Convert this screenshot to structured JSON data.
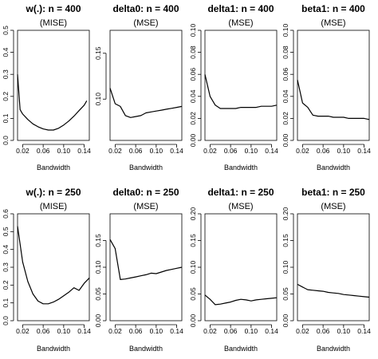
{
  "chart_data": [
    {
      "type": "line",
      "title": "w(.): n = 400",
      "subtitle": "(MISE)",
      "xlabel": "Bandwidth",
      "ylabel": "",
      "xlim": [
        0.01,
        0.15
      ],
      "ylim": [
        0,
        0.5
      ],
      "xticks": [
        0.02,
        0.06,
        0.1,
        0.14
      ],
      "xtick_labels": [
        "0.02",
        "0.06",
        "0.10",
        "0.14"
      ],
      "yticks": [
        0,
        0.1,
        0.2,
        0.3,
        0.4,
        0.5
      ],
      "ytick_labels": [
        "0.0",
        "0.1",
        "0.2",
        "0.3",
        "0.4",
        "0.5"
      ],
      "series": [
        {
          "x": [
            0.01,
            0.015,
            0.02,
            0.03,
            0.04,
            0.05,
            0.06,
            0.07,
            0.08,
            0.09,
            0.1,
            0.11,
            0.12,
            0.13,
            0.14,
            0.145
          ],
          "y": [
            0.3,
            0.14,
            0.12,
            0.095,
            0.075,
            0.062,
            0.052,
            0.047,
            0.047,
            0.055,
            0.07,
            0.088,
            0.11,
            0.135,
            0.16,
            0.18
          ]
        }
      ]
    },
    {
      "type": "line",
      "title": "delta0: n = 400",
      "subtitle": "(MSE)",
      "xlabel": "Bandwidth",
      "ylabel": "",
      "xlim": [
        0.01,
        0.15
      ],
      "ylim": [
        0.055,
        0.175
      ],
      "xticks": [
        0.02,
        0.06,
        0.1,
        0.14
      ],
      "xtick_labels": [
        "0.02",
        "0.06",
        "0.10",
        "0.14"
      ],
      "yticks": [
        0.1,
        0.15
      ],
      "ytick_labels": [
        "0.10",
        "0.15"
      ],
      "series": [
        {
          "x": [
            0.01,
            0.02,
            0.03,
            0.04,
            0.05,
            0.06,
            0.07,
            0.08,
            0.09,
            0.1,
            0.11,
            0.12,
            0.13,
            0.14,
            0.15
          ],
          "y": [
            0.112,
            0.095,
            0.092,
            0.082,
            0.08,
            0.081,
            0.082,
            0.085,
            0.086,
            0.087,
            0.088,
            0.089,
            0.09,
            0.091,
            0.092
          ]
        }
      ]
    },
    {
      "type": "line",
      "title": "delta1: n = 400",
      "subtitle": "(MSE)",
      "xlabel": "Bandwidth",
      "ylabel": "",
      "xlim": [
        0.01,
        0.15
      ],
      "ylim": [
        0,
        0.1
      ],
      "xticks": [
        0.02,
        0.06,
        0.1,
        0.14
      ],
      "xtick_labels": [
        "0.02",
        "0.06",
        "0.10",
        "0.14"
      ],
      "yticks": [
        0,
        0.02,
        0.04,
        0.06,
        0.08,
        0.1
      ],
      "ytick_labels": [
        "0.00",
        "0.02",
        "0.04",
        "0.06",
        "0.08",
        "0.10"
      ],
      "series": [
        {
          "x": [
            0.01,
            0.02,
            0.03,
            0.04,
            0.05,
            0.06,
            0.07,
            0.08,
            0.09,
            0.1,
            0.11,
            0.12,
            0.13,
            0.14,
            0.15
          ],
          "y": [
            0.06,
            0.04,
            0.032,
            0.029,
            0.029,
            0.029,
            0.029,
            0.03,
            0.03,
            0.03,
            0.03,
            0.031,
            0.031,
            0.031,
            0.032
          ]
        }
      ]
    },
    {
      "type": "line",
      "title": "beta1: n = 400",
      "subtitle": "(MSE)",
      "xlabel": "Bandwidth",
      "ylabel": "",
      "xlim": [
        0.01,
        0.15
      ],
      "ylim": [
        0,
        0.1
      ],
      "xticks": [
        0.02,
        0.06,
        0.1,
        0.14
      ],
      "xtick_labels": [
        "0.02",
        "0.06",
        "0.10",
        "0.14"
      ],
      "yticks": [
        0,
        0.02,
        0.04,
        0.06,
        0.08,
        0.1
      ],
      "ytick_labels": [
        "0.00",
        "0.02",
        "0.04",
        "0.06",
        "0.08",
        "0.10"
      ],
      "series": [
        {
          "x": [
            0.01,
            0.02,
            0.03,
            0.04,
            0.05,
            0.06,
            0.07,
            0.08,
            0.09,
            0.1,
            0.11,
            0.12,
            0.13,
            0.14,
            0.15
          ],
          "y": [
            0.055,
            0.034,
            0.03,
            0.023,
            0.022,
            0.022,
            0.022,
            0.021,
            0.021,
            0.021,
            0.02,
            0.02,
            0.02,
            0.02,
            0.019
          ]
        }
      ]
    },
    {
      "type": "line",
      "title": "w(.): n = 250",
      "subtitle": "(MISE)",
      "xlabel": "Bandwidth",
      "ylabel": "",
      "xlim": [
        0.01,
        0.15
      ],
      "ylim": [
        0,
        0.6
      ],
      "xticks": [
        0.02,
        0.06,
        0.1,
        0.14
      ],
      "xtick_labels": [
        "0.02",
        "0.06",
        "0.10",
        "0.14"
      ],
      "yticks": [
        0,
        0.1,
        0.2,
        0.3,
        0.4,
        0.5,
        0.6
      ],
      "ytick_labels": [
        "0.0",
        "0.1",
        "0.2",
        "0.3",
        "0.4",
        "0.5",
        "0.6"
      ],
      "series": [
        {
          "x": [
            0.01,
            0.02,
            0.03,
            0.04,
            0.05,
            0.06,
            0.07,
            0.08,
            0.09,
            0.1,
            0.11,
            0.12,
            0.13,
            0.14,
            0.15
          ],
          "y": [
            0.53,
            0.33,
            0.22,
            0.15,
            0.11,
            0.095,
            0.095,
            0.105,
            0.12,
            0.14,
            0.16,
            0.185,
            0.17,
            0.21,
            0.24
          ]
        }
      ]
    },
    {
      "type": "line",
      "title": "delta0: n = 250",
      "subtitle": "(MSE)",
      "xlabel": "Bandwidth",
      "ylabel": "",
      "xlim": [
        0.01,
        0.15
      ],
      "ylim": [
        0,
        0.2
      ],
      "xticks": [
        0.02,
        0.06,
        0.1,
        0.14
      ],
      "xtick_labels": [
        "0.02",
        "0.06",
        "0.10",
        "0.14"
      ],
      "yticks": [
        0,
        0.05,
        0.1,
        0.15
      ],
      "ytick_labels": [
        "0.00",
        "0.05",
        "0.10",
        "0.15"
      ],
      "series": [
        {
          "x": [
            0.01,
            0.02,
            0.03,
            0.04,
            0.05,
            0.06,
            0.07,
            0.08,
            0.09,
            0.1,
            0.11,
            0.12,
            0.13,
            0.14,
            0.15
          ],
          "y": [
            0.152,
            0.135,
            0.077,
            0.078,
            0.08,
            0.082,
            0.084,
            0.086,
            0.089,
            0.088,
            0.091,
            0.094,
            0.096,
            0.098,
            0.1
          ]
        }
      ]
    },
    {
      "type": "line",
      "title": "delta1: n = 250",
      "subtitle": "(MSE)",
      "xlabel": "Bandwidth",
      "ylabel": "",
      "xlim": [
        0.01,
        0.15
      ],
      "ylim": [
        0,
        0.2
      ],
      "xticks": [
        0.02,
        0.06,
        0.1,
        0.14
      ],
      "xtick_labels": [
        "0.02",
        "0.06",
        "0.10",
        "0.14"
      ],
      "yticks": [
        0,
        0.05,
        0.1,
        0.15,
        0.2
      ],
      "ytick_labels": [
        "0.00",
        "0.05",
        "0.10",
        "0.15",
        "0.20"
      ],
      "series": [
        {
          "x": [
            0.01,
            0.02,
            0.03,
            0.04,
            0.05,
            0.06,
            0.07,
            0.08,
            0.09,
            0.1,
            0.11,
            0.12,
            0.13,
            0.14,
            0.15
          ],
          "y": [
            0.048,
            0.04,
            0.03,
            0.031,
            0.033,
            0.035,
            0.038,
            0.04,
            0.039,
            0.037,
            0.039,
            0.04,
            0.041,
            0.042,
            0.043
          ]
        }
      ]
    },
    {
      "type": "line",
      "title": "beta1: n = 250",
      "subtitle": "(MSE)",
      "xlabel": "Bandwidth",
      "ylabel": "",
      "xlim": [
        0.01,
        0.15
      ],
      "ylim": [
        0,
        0.2
      ],
      "xticks": [
        0.02,
        0.06,
        0.1,
        0.14
      ],
      "xtick_labels": [
        "0.02",
        "0.06",
        "0.10",
        "0.14"
      ],
      "yticks": [
        0,
        0.05,
        0.1,
        0.15,
        0.2
      ],
      "ytick_labels": [
        "0.00",
        "0.05",
        "0.10",
        "0.15",
        "0.20"
      ],
      "series": [
        {
          "x": [
            0.01,
            0.02,
            0.03,
            0.04,
            0.05,
            0.06,
            0.07,
            0.08,
            0.09,
            0.1,
            0.11,
            0.12,
            0.13,
            0.14,
            0.15
          ],
          "y": [
            0.068,
            0.063,
            0.058,
            0.057,
            0.056,
            0.055,
            0.053,
            0.052,
            0.051,
            0.049,
            0.048,
            0.047,
            0.046,
            0.045,
            0.044
          ]
        }
      ]
    }
  ]
}
